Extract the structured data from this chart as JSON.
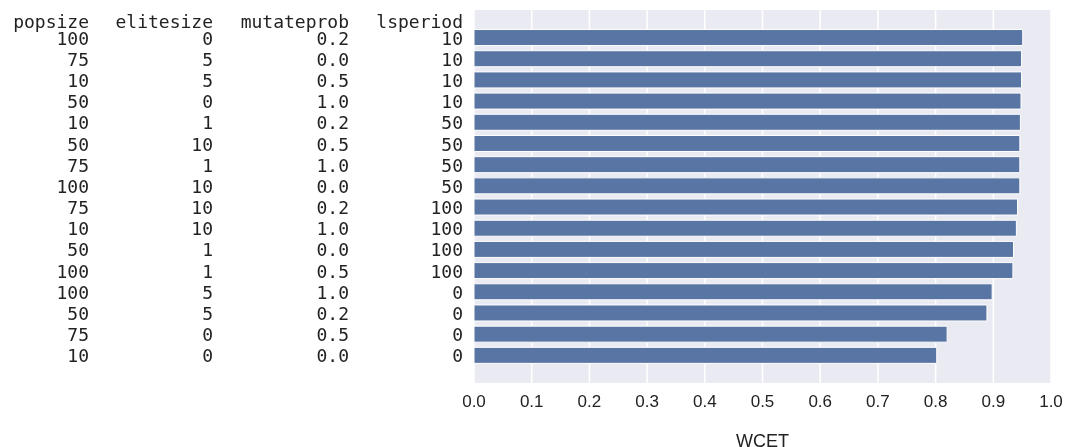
{
  "chart_data": {
    "type": "bar",
    "orientation": "horizontal",
    "xlabel": "WCET",
    "ylabel": "popsize elitesize mutateprob lsperiod",
    "categories": [
      "100 0 0.2 10",
      "75 5 0.0 10",
      "10 5 0.5 10",
      "50 0 1.0 10",
      "10 1 0.2 50",
      "50 10 0.5 50",
      "75 1 1.0 50",
      "100 10 0.0 50",
      "75 10 0.2 100",
      "10 10 1.0 100",
      "50 1 0.0 100",
      "100 1 0.5 100",
      "100 5 1.0 0",
      "50 5 0.2 0",
      "75 0 0.5 0",
      "10 0 0.0 0"
    ],
    "values": [
      0.951,
      0.949,
      0.949,
      0.948,
      0.947,
      0.946,
      0.946,
      0.946,
      0.942,
      0.94,
      0.935,
      0.934,
      0.898,
      0.889,
      0.82,
      0.802
    ],
    "color": "#5975a4",
    "xlim": [
      0,
      1.0
    ],
    "xticks": [
      {
        "value": 0,
        "label": "0.0"
      },
      0.1,
      0.2,
      0.3,
      0.4,
      0.5,
      0.6,
      0.7,
      0.8,
      0.9,
      {
        "value": 1,
        "label": "1.0"
      }
    ],
    "grid": "x"
  }
}
